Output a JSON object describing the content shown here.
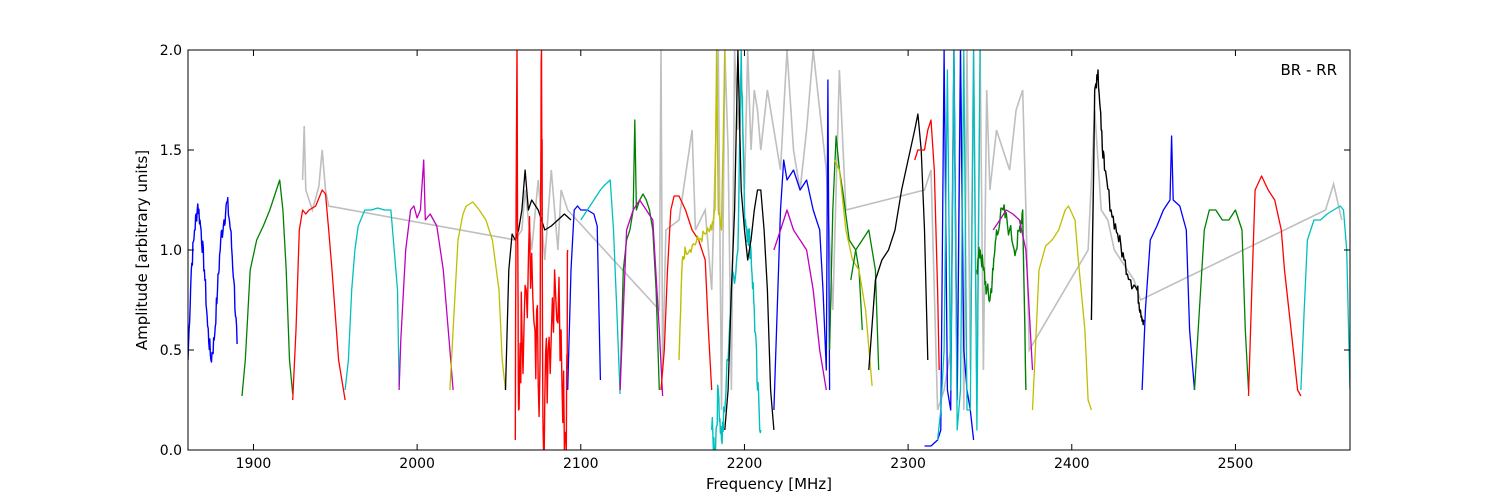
{
  "chart_data": {
    "type": "line",
    "title": "",
    "xlabel": "Frequency [MHz]",
    "ylabel": "Amplitude [arbitrary units]",
    "annotation": "BR - RR",
    "xlim": [
      1860,
      2570
    ],
    "ylim": [
      0.0,
      2.0
    ],
    "x_ticks": [
      1900,
      2000,
      2100,
      2200,
      2300,
      2400,
      2500
    ],
    "x_tick_labels": [
      "1900",
      "2000",
      "2100",
      "2200",
      "2300",
      "2400",
      "2500"
    ],
    "y_ticks": [
      0.0,
      0.5,
      1.0,
      1.5,
      2.0
    ],
    "y_tick_labels": [
      "0.0",
      "0.5",
      "1.0",
      "1.5",
      "2.0"
    ],
    "grid": false,
    "legend": "none",
    "background_series": {
      "color": "#bfbfbf",
      "x": [
        1930,
        1931,
        1932,
        1934,
        1936,
        1938,
        1940,
        1942,
        1944,
        1946,
        2060,
        2064,
        2066,
        2070,
        2074,
        2078,
        2082,
        2086,
        2088,
        2092,
        2148,
        2149,
        2150,
        2152,
        2160,
        2168,
        2170,
        2176,
        2180,
        2184,
        2186,
        2188,
        2190,
        2192,
        2194,
        2196,
        2198,
        2200,
        2202,
        2204,
        2206,
        2208,
        2210,
        2214,
        2218,
        2222,
        2226,
        2230,
        2234,
        2238,
        2242,
        2246,
        2250,
        2254,
        2258,
        2262,
        2310,
        2314,
        2318,
        2322,
        2326,
        2328,
        2330,
        2332,
        2334,
        2336,
        2338,
        2340,
        2342,
        2344,
        2346,
        2348,
        2350,
        2354,
        2358,
        2362,
        2366,
        2370,
        2372,
        2374,
        2410,
        2414,
        2418,
        2422,
        2426,
        2430,
        2434,
        2438,
        2442,
        2555,
        2560,
        2565
      ],
      "y": [
        1.35,
        1.62,
        1.3,
        1.25,
        1.2,
        1.26,
        1.32,
        1.5,
        1.3,
        1.22,
        1.05,
        1.1,
        1.3,
        1.0,
        1.35,
        0.95,
        1.4,
        1.0,
        1.3,
        1.2,
        0.7,
        2.0,
        0.4,
        1.1,
        1.15,
        1.6,
        1.1,
        1.2,
        0.8,
        2.0,
        0.2,
        2.0,
        1.5,
        0.3,
        2.0,
        1.6,
        1.9,
        1.3,
        2.0,
        1.5,
        1.8,
        1.7,
        1.5,
        1.8,
        1.6,
        1.4,
        2.0,
        1.5,
        1.3,
        1.6,
        2.0,
        1.7,
        1.4,
        0.7,
        1.9,
        1.2,
        1.3,
        1.4,
        0.2,
        0.3,
        0.5,
        2.0,
        0.3,
        2.0,
        0.2,
        2.0,
        0.4,
        2.0,
        0.3,
        2.0,
        0.4,
        1.8,
        1.3,
        1.6,
        1.5,
        1.4,
        1.7,
        1.8,
        1.2,
        0.5,
        1.0,
        1.7,
        1.2,
        1.15,
        1.0,
        0.95,
        0.9,
        0.85,
        0.75,
        1.2,
        1.33,
        1.15
      ]
    },
    "series": [
      {
        "color": "#0000ff",
        "x": [
          1860,
          1862,
          1864,
          1866,
          1868,
          1870,
          1872,
          1874,
          1876,
          1878,
          1880,
          1882,
          1884,
          1886,
          1888,
          1890
        ],
        "y": [
          0.45,
          0.9,
          1.1,
          1.23,
          1.1,
          0.9,
          0.62,
          0.45,
          0.55,
          0.8,
          1.05,
          1.15,
          1.24,
          1.1,
          0.85,
          0.53
        ],
        "noise": 0.05
      },
      {
        "color": "#008000",
        "x": [
          1893,
          1895,
          1898,
          1902,
          1906,
          1910,
          1914,
          1916,
          1918,
          1920,
          1922,
          1924
        ],
        "y": [
          0.27,
          0.45,
          0.9,
          1.05,
          1.12,
          1.2,
          1.3,
          1.35,
          1.2,
          0.9,
          0.45,
          0.28
        ]
      },
      {
        "color": "#ff0000",
        "x": [
          1924,
          1926,
          1928,
          1930,
          1932,
          1934,
          1938,
          1942,
          1944,
          1946,
          1948,
          1952,
          1956
        ],
        "y": [
          0.25,
          0.6,
          1.1,
          1.2,
          1.18,
          1.2,
          1.22,
          1.3,
          1.28,
          1.1,
          0.9,
          0.45,
          0.25
        ]
      },
      {
        "color": "#00bfbf",
        "x": [
          1956,
          1958,
          1960,
          1962,
          1964,
          1968,
          1972,
          1976,
          1980,
          1984,
          1988,
          1989
        ],
        "y": [
          0.3,
          0.45,
          0.8,
          1.0,
          1.12,
          1.2,
          1.2,
          1.21,
          1.2,
          1.2,
          0.8,
          0.32
        ]
      },
      {
        "color": "#bf00bf",
        "x": [
          1989,
          1990,
          1993,
          1996,
          1998,
          2000,
          2002,
          2004,
          2005,
          2008,
          2012,
          2016,
          2020,
          2022
        ],
        "y": [
          0.3,
          0.55,
          1.0,
          1.2,
          1.22,
          1.16,
          1.2,
          1.45,
          1.15,
          1.18,
          1.12,
          0.9,
          0.5,
          0.3
        ]
      },
      {
        "color": "#bfbf00",
        "x": [
          2020,
          2022,
          2025,
          2028,
          2030,
          2034,
          2038,
          2042,
          2046,
          2050,
          2052,
          2054
        ],
        "y": [
          0.3,
          0.6,
          1.05,
          1.18,
          1.22,
          1.24,
          1.2,
          1.15,
          1.05,
          0.8,
          0.45,
          0.3
        ]
      },
      {
        "color": "#000000",
        "x": [
          2054,
          2056,
          2058,
          2060,
          2062,
          2064,
          2066,
          2068,
          2070,
          2074,
          2078,
          2082,
          2086,
          2090,
          2094
        ],
        "y": [
          0.3,
          0.9,
          1.08,
          1.05,
          1.1,
          1.2,
          1.4,
          1.2,
          1.25,
          1.2,
          1.1,
          1.12,
          1.15,
          1.18,
          1.15
        ]
      },
      {
        "color": "#ff0000",
        "x": [
          2060,
          2061,
          2062,
          2064,
          2068,
          2072,
          2075,
          2076,
          2077,
          2080,
          2084,
          2088,
          2091,
          2092
        ],
        "y": [
          0.05,
          2.0,
          0.2,
          0.6,
          0.95,
          0.6,
          0.4,
          2.0,
          0.1,
          0.5,
          0.9,
          0.6,
          0.05,
          1.0
        ],
        "noise": 0.28
      },
      {
        "color": "#0000ff",
        "x": [
          2092,
          2094,
          2096,
          2098,
          2100,
          2104,
          2108,
          2110,
          2112
        ],
        "y": [
          0.3,
          0.9,
          1.2,
          1.22,
          1.2,
          1.2,
          1.18,
          1.12,
          0.35
        ]
      },
      {
        "color": "#00bfbf",
        "x": [
          2100,
          2104,
          2108,
          2112,
          2114,
          2118,
          2120,
          2122,
          2124
        ],
        "y": [
          1.15,
          1.2,
          1.25,
          1.3,
          1.32,
          1.35,
          1.1,
          0.7,
          0.28
        ]
      },
      {
        "color": "#008000",
        "x": [
          2124,
          2126,
          2128,
          2130,
          2132,
          2133,
          2134,
          2136,
          2138,
          2140,
          2142,
          2144,
          2146,
          2148
        ],
        "y": [
          0.3,
          0.9,
          1.05,
          1.1,
          1.2,
          1.65,
          1.2,
          1.25,
          1.28,
          1.25,
          1.2,
          1.1,
          0.8,
          0.3
        ]
      },
      {
        "color": "#bf00bf",
        "x": [
          2124,
          2128,
          2132,
          2136,
          2140,
          2144,
          2148,
          2150
        ],
        "y": [
          0.3,
          1.1,
          1.2,
          1.25,
          1.2,
          1.15,
          0.6,
          0.27
        ]
      },
      {
        "color": "#ff0000",
        "x": [
          2149,
          2151,
          2153,
          2155,
          2157,
          2160,
          2164,
          2168,
          2172,
          2176,
          2178,
          2180
        ],
        "y": [
          0.3,
          0.5,
          0.9,
          1.2,
          1.27,
          1.27,
          1.2,
          1.1,
          1.05,
          0.95,
          0.6,
          0.3
        ]
      },
      {
        "color": "#bfbf00",
        "x": [
          2160,
          2162,
          2164,
          2168,
          2172,
          2176,
          2180,
          2182,
          2183,
          2184,
          2186,
          2188
        ],
        "y": [
          0.45,
          0.95,
          1.0,
          1.02,
          1.05,
          1.08,
          1.1,
          1.2,
          2.0,
          1.2,
          1.1,
          2.0
        ],
        "noise": 0.03
      },
      {
        "color": "#00bfbf",
        "x": [
          2180,
          2182,
          2184,
          2186,
          2188,
          2192,
          2196,
          2198,
          2200,
          2202,
          2204,
          2206,
          2208,
          2210
        ],
        "y": [
          0.1,
          0.0,
          0.3,
          0.05,
          0.2,
          0.8,
          1.0,
          2.0,
          1.2,
          1.1,
          1.0,
          0.7,
          0.3,
          0.1
        ],
        "noise": 0.08
      },
      {
        "color": "#000000",
        "x": [
          2188,
          2190,
          2192,
          2194,
          2196,
          2198,
          2200,
          2202,
          2204,
          2206,
          2208,
          2210,
          2212,
          2214,
          2216,
          2218
        ],
        "y": [
          0.1,
          0.3,
          0.8,
          1.2,
          2.0,
          1.3,
          1.1,
          0.95,
          1.05,
          1.2,
          1.3,
          1.3,
          1.1,
          0.8,
          0.3,
          0.1
        ]
      },
      {
        "color": "#0000ff",
        "x": [
          2218,
          2220,
          2222,
          2224,
          2226,
          2230,
          2234,
          2238,
          2242,
          2246,
          2248,
          2250,
          2251,
          2252
        ],
        "y": [
          0.2,
          0.7,
          1.2,
          1.45,
          1.35,
          1.4,
          1.3,
          1.35,
          1.2,
          1.1,
          0.8,
          0.4,
          1.85,
          0.3
        ]
      },
      {
        "color": "#bf00bf",
        "x": [
          2218,
          2222,
          2226,
          2230,
          2234,
          2238,
          2242,
          2246,
          2250
        ],
        "y": [
          1.0,
          1.1,
          1.2,
          1.1,
          1.05,
          1.0,
          0.8,
          0.5,
          0.3
        ]
      },
      {
        "color": "#008000",
        "x": [
          2252,
          2254,
          2256,
          2258,
          2260,
          2264,
          2268,
          2270,
          2272
        ],
        "y": [
          0.5,
          1.2,
          1.57,
          1.4,
          1.3,
          1.05,
          1.0,
          0.9,
          0.6
        ]
      },
      {
        "color": "#bfbf00",
        "x": [
          2255,
          2258,
          2262,
          2266,
          2270,
          2274,
          2278
        ],
        "y": [
          1.45,
          1.4,
          1.1,
          0.95,
          0.9,
          0.7,
          0.32
        ]
      },
      {
        "color": "#008000",
        "x": [
          2265,
          2268,
          2272,
          2276,
          2280,
          2282
        ],
        "y": [
          0.85,
          1.0,
          1.05,
          1.1,
          0.9,
          0.4
        ]
      },
      {
        "color": "#000000",
        "x": [
          2276,
          2280,
          2284,
          2288,
          2292,
          2296,
          2300,
          2304,
          2306,
          2308,
          2310,
          2312
        ],
        "y": [
          0.4,
          0.85,
          0.95,
          1.0,
          1.1,
          1.3,
          1.45,
          1.6,
          1.68,
          1.5,
          1.1,
          0.45
        ]
      },
      {
        "color": "#ff0000",
        "x": [
          2304,
          2306,
          2310,
          2312,
          2314,
          2316,
          2318,
          2319
        ],
        "y": [
          1.45,
          1.5,
          1.5,
          1.6,
          1.65,
          1.4,
          0.8,
          0.4
        ]
      },
      {
        "color": "#0000ff",
        "x": [
          2310,
          2314,
          2318,
          2320,
          2322,
          2324,
          2326,
          2328,
          2330,
          2332,
          2334,
          2336,
          2338,
          2340
        ],
        "y": [
          0.02,
          0.02,
          0.05,
          0.1,
          2.0,
          0.3,
          0.2,
          2.0,
          0.25,
          2.0,
          0.5,
          0.3,
          0.2,
          0.05
        ]
      },
      {
        "color": "#00bfbf",
        "x": [
          2318,
          2320,
          2322,
          2324,
          2326,
          2328,
          2330,
          2332,
          2334,
          2336,
          2338,
          2340,
          2342,
          2344
        ],
        "y": [
          0.05,
          0.2,
          0.5,
          1.9,
          0.3,
          2.0,
          0.1,
          0.3,
          2.0,
          0.2,
          0.2,
          2.0,
          0.1,
          2.0
        ]
      },
      {
        "color": "#008000",
        "x": [
          2342,
          2344,
          2346,
          2348,
          2350,
          2352,
          2354,
          2358,
          2362,
          2366,
          2368,
          2370,
          2372
        ],
        "y": [
          0.9,
          1.0,
          0.9,
          0.8,
          0.75,
          0.9,
          1.1,
          1.2,
          1.1,
          1.0,
          1.1,
          1.2,
          0.3
        ],
        "noise": 0.05
      },
      {
        "color": "#bf00bf",
        "x": [
          2352,
          2356,
          2360,
          2364,
          2368,
          2372,
          2376
        ],
        "y": [
          1.1,
          1.15,
          1.2,
          1.18,
          1.15,
          1.0,
          0.4
        ]
      },
      {
        "color": "#bfbf00",
        "x": [
          2376,
          2378,
          2380,
          2384,
          2388,
          2392,
          2396,
          2398,
          2402,
          2404,
          2408,
          2410,
          2412
        ],
        "y": [
          0.2,
          0.55,
          0.9,
          1.02,
          1.05,
          1.1,
          1.2,
          1.22,
          1.15,
          0.95,
          0.6,
          0.25,
          0.2
        ]
      },
      {
        "color": "#000000",
        "x": [
          2412,
          2414,
          2416,
          2418,
          2420,
          2424,
          2428,
          2432,
          2436,
          2440,
          2442,
          2444
        ],
        "y": [
          0.65,
          1.8,
          1.9,
          1.6,
          1.4,
          1.2,
          1.08,
          0.95,
          0.85,
          0.8,
          0.7,
          0.65
        ],
        "noise": 0.04
      },
      {
        "color": "#0000ff",
        "x": [
          2443,
          2445,
          2448,
          2452,
          2456,
          2460,
          2461,
          2462,
          2466,
          2470,
          2472,
          2475
        ],
        "y": [
          0.3,
          0.7,
          1.05,
          1.12,
          1.2,
          1.25,
          1.57,
          1.25,
          1.22,
          1.1,
          0.6,
          0.3
        ]
      },
      {
        "color": "#008000",
        "x": [
          2475,
          2478,
          2481,
          2484,
          2488,
          2492,
          2496,
          2500,
          2504,
          2506,
          2508
        ],
        "y": [
          0.3,
          0.7,
          1.1,
          1.2,
          1.2,
          1.15,
          1.15,
          1.2,
          1.1,
          0.6,
          0.3
        ]
      },
      {
        "color": "#ff0000",
        "x": [
          2508,
          2510,
          2512,
          2516,
          2520,
          2524,
          2528,
          2530,
          2534,
          2538,
          2540
        ],
        "y": [
          0.27,
          0.8,
          1.3,
          1.37,
          1.3,
          1.25,
          1.1,
          0.9,
          0.6,
          0.3,
          0.27
        ]
      },
      {
        "color": "#00bfbf",
        "x": [
          2540,
          2542,
          2544,
          2548,
          2552,
          2556,
          2560,
          2564,
          2566,
          2568,
          2570
        ],
        "y": [
          0.3,
          0.7,
          1.05,
          1.15,
          1.15,
          1.18,
          1.2,
          1.22,
          1.2,
          1.0,
          0.3
        ]
      }
    ]
  }
}
